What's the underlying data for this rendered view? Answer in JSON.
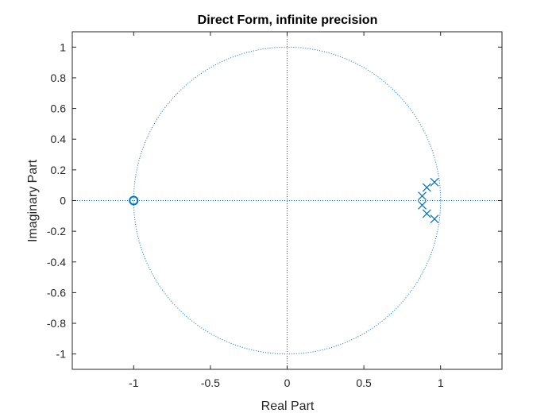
{
  "chart_data": {
    "type": "scatter",
    "title": "Direct Form, infinite precision",
    "xlabel": "Real Part",
    "ylabel": "Imaginary Part",
    "xlim": [
      -1.4,
      1.4
    ],
    "ylim": [
      -1.1,
      1.1
    ],
    "xticks": [
      -1,
      -0.5,
      0,
      0.5,
      1
    ],
    "xtick_labels": [
      "-1",
      "-0.5",
      "0",
      "0.5",
      "1"
    ],
    "yticks": [
      1,
      0.8,
      0.6,
      0.4,
      0.2,
      0,
      -0.2,
      -0.4,
      -0.6,
      -0.8,
      -1
    ],
    "ytick_labels": [
      "1",
      "0.8",
      "0.6",
      "0.4",
      "0.2",
      "0",
      "-0.2",
      "-0.4",
      "-0.6",
      "-0.8",
      "-1"
    ],
    "grid": false,
    "unit_circle": true,
    "series": [
      {
        "marker": "o",
        "points": [
          {
            "x": -1.0,
            "y": 0.0
          }
        ]
      },
      {
        "marker": "x",
        "points": [
          {
            "x": 0.96,
            "y": 0.12
          },
          {
            "x": 0.91,
            "y": 0.085
          },
          {
            "x": 0.88,
            "y": 0.03
          },
          {
            "x": 0.88,
            "y": -0.03
          },
          {
            "x": 0.91,
            "y": -0.085
          },
          {
            "x": 0.96,
            "y": -0.12
          }
        ]
      }
    ],
    "colors": {
      "data": "#0072BD",
      "axes": "#262626"
    }
  }
}
